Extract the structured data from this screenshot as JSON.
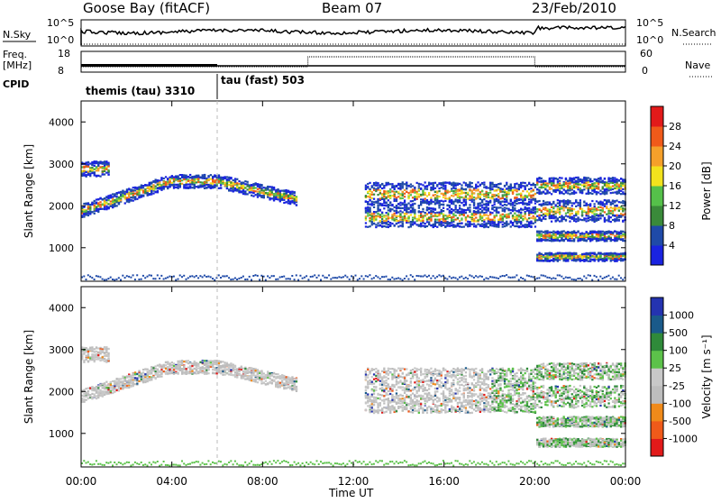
{
  "header": {
    "station": "Goose Bay (fitACF)",
    "beam": "Beam 07",
    "date": "23/Feb/2010"
  },
  "top_panels": {
    "nsky_label": "N.Sky",
    "nsky_ticks": [
      "10^5",
      "10^0"
    ],
    "nsearch_label": "N.Search",
    "freq_label": "Freq.",
    "freq_unit": "[MHz]",
    "freq_ticks": [
      "18",
      "8"
    ],
    "nave_label": "Nave",
    "nave_ticks": [
      "60",
      "0"
    ],
    "cpid_label": "CPID",
    "cpid_segments": [
      "themis (tau) 3310",
      "tau (fast) 503"
    ]
  },
  "colors": {
    "power": [
      "#1a23e0",
      "#1f4aa8",
      "#3a8a3a",
      "#55c04a",
      "#f2e21d",
      "#f5a02a",
      "#f05a1a",
      "#e21a1a"
    ],
    "velocity": [
      "#2433b0",
      "#1a5a8a",
      "#2f8a3a",
      "#5cc24a",
      "#c8c8c8",
      "#bdbdbd",
      "#f08a1a",
      "#f05a1a",
      "#e21a1a"
    ]
  },
  "chart_data": [
    {
      "type": "line",
      "title": "N.Sky / N.Search",
      "x": [
        "00:00",
        "04:00",
        "08:00",
        "12:00",
        "16:00",
        "20:00",
        "00:00"
      ],
      "y_ticks": [
        "10^5",
        "10^0"
      ],
      "series": [
        {
          "name": "N.Sky",
          "style": "solid"
        },
        {
          "name": "N.Search",
          "style": "dotted"
        }
      ]
    },
    {
      "type": "line",
      "title": "Freq. / Nave",
      "x": [
        "00:00",
        "04:00",
        "08:00",
        "12:00",
        "16:00",
        "20:00",
        "00:00"
      ],
      "ylim_freq": [
        8,
        18
      ],
      "ylim_nave": [
        0,
        60
      ],
      "series": [
        {
          "name": "Freq.",
          "style": "solid"
        },
        {
          "name": "Nave",
          "style": "dotted"
        }
      ]
    },
    {
      "type": "heatmap",
      "ylabel": "Slant Range [km]",
      "y_ticks": [
        "1000",
        "2000",
        "3000",
        "4000"
      ],
      "x_ticks": [
        "00:00",
        "04:00",
        "08:00",
        "12:00",
        "16:00",
        "20:00",
        "00:00"
      ],
      "colorbar_label": "Power [dB]",
      "colorbar_ticks": [
        "4",
        "8",
        "12",
        "16",
        "20",
        "24",
        "28"
      ]
    },
    {
      "type": "heatmap",
      "ylabel": "Slant Range [km]",
      "y_ticks": [
        "1000",
        "2000",
        "3000",
        "4000"
      ],
      "x_ticks": [
        "00:00",
        "04:00",
        "08:00",
        "12:00",
        "16:00",
        "20:00",
        "00:00"
      ],
      "colorbar_label": "Velocity [m s⁻¹]",
      "colorbar_ticks": [
        "1000",
        "500",
        "100",
        "25",
        "-25",
        "-100",
        "-500",
        "-1000"
      ]
    }
  ],
  "xaxis_label": "Time UT"
}
